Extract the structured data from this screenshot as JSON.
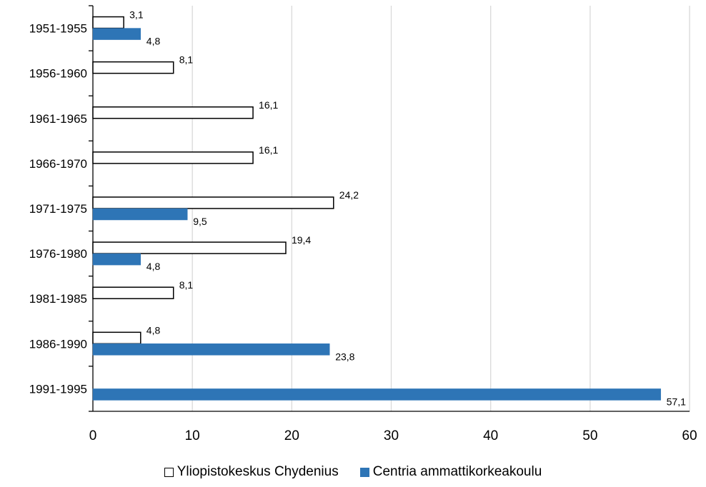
{
  "chart_data": {
    "type": "bar",
    "orientation": "horizontal",
    "categories": [
      "1951-1955",
      "1956-1960",
      "1961-1965",
      "1966-1970",
      "1971-1975",
      "1976-1980",
      "1981-1985",
      "1986-1990",
      "1991-1995"
    ],
    "series": [
      {
        "name": "Yliopistokeskus Chydenius",
        "values": [
          3.1,
          8.1,
          16.1,
          16.1,
          24.2,
          19.4,
          8.1,
          4.8,
          null
        ],
        "labels": [
          "3,1",
          "8,1",
          "16,1",
          "16,1",
          "24,2",
          "19,4",
          "8,1",
          "4,8",
          null
        ],
        "fill": "#ffffff",
        "stroke": "#000000"
      },
      {
        "name": "Centria ammattikorkeakoulu",
        "values": [
          4.8,
          null,
          null,
          null,
          9.5,
          4.8,
          null,
          23.8,
          57.1
        ],
        "labels": [
          "4,8",
          null,
          null,
          null,
          "9,5",
          "4,8",
          null,
          "23,8",
          "57,1"
        ],
        "fill": "#2e75b6",
        "stroke": "#2e75b6"
      }
    ],
    "xlim": [
      0,
      60
    ],
    "xticks": [
      "0",
      "10",
      "20",
      "30",
      "40",
      "50",
      "60"
    ],
    "grid": true,
    "gridColor": "#d9d9d9",
    "legend": "bottom"
  }
}
